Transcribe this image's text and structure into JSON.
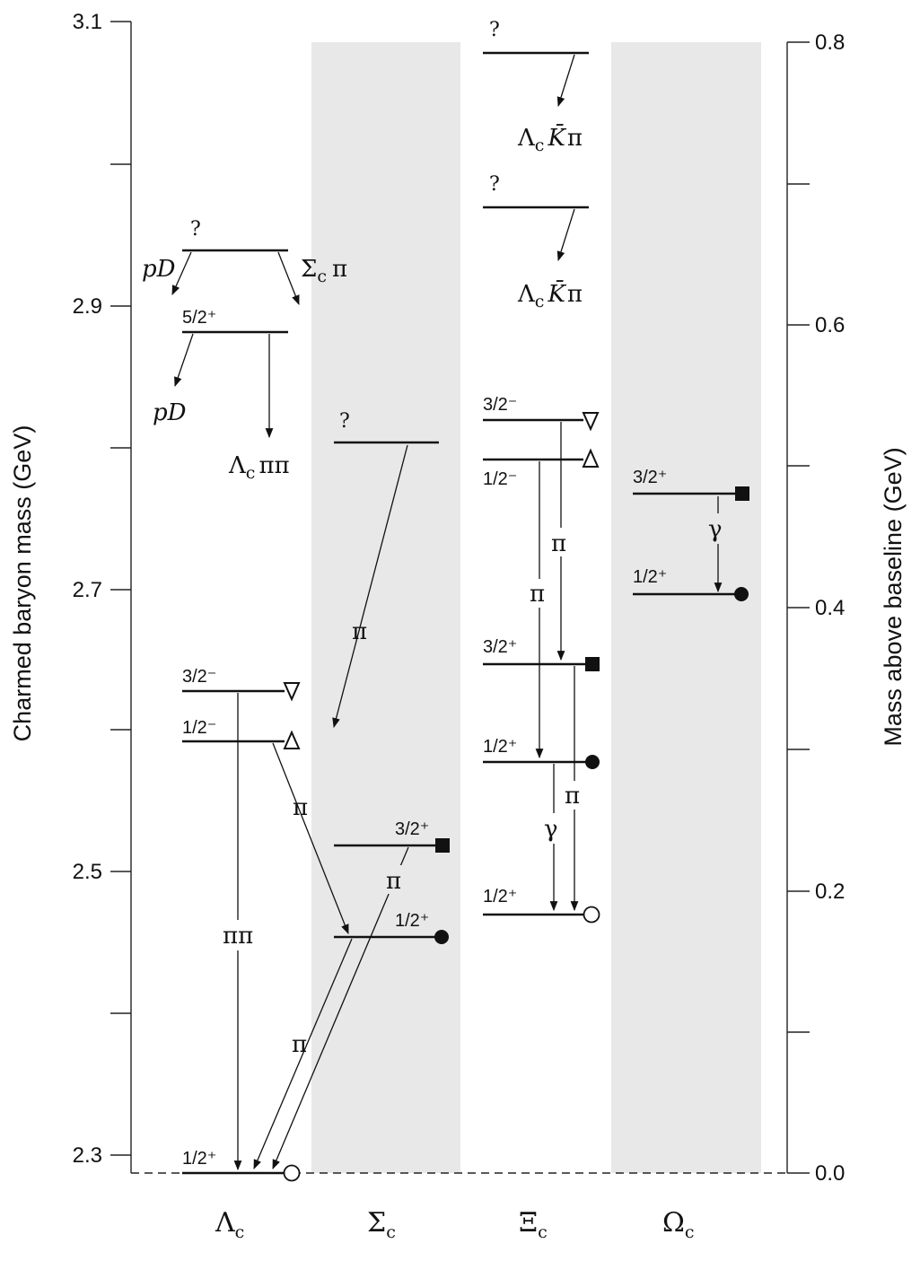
{
  "axes": {
    "left_label": "Charmed baryon mass  (GeV)",
    "right_label": "Mass above baseline  (GeV)",
    "left_ticks": [
      "2.3",
      "2.5",
      "2.7",
      "2.9",
      "3.1"
    ],
    "right_ticks": [
      "0.0",
      "0.2",
      "0.4",
      "0.6",
      "0.8"
    ]
  },
  "columns": [
    {
      "name": "Λ",
      "sub": "c"
    },
    {
      "name": "Σ",
      "sub": "c"
    },
    {
      "name": "Ξ",
      "sub": "c"
    },
    {
      "name": "Ω",
      "sub": "c"
    }
  ],
  "levels": {
    "lambda": [
      {
        "jp": "1/2⁺",
        "marker": "open-circle"
      },
      {
        "jp": "1/2⁻",
        "marker": "up-triangle"
      },
      {
        "jp": "3/2⁻",
        "marker": "down-triangle"
      },
      {
        "jp": "5/2⁺",
        "marker": "none"
      },
      {
        "jp": "?",
        "marker": "none"
      }
    ],
    "sigma": [
      {
        "jp": "1/2⁺",
        "marker": "filled-circle"
      },
      {
        "jp": "3/2⁺",
        "marker": "filled-square"
      },
      {
        "jp": "?",
        "marker": "none"
      }
    ],
    "xi": [
      {
        "jp": "1/2⁺",
        "marker": "open-circle"
      },
      {
        "jp": "1/2⁺",
        "marker": "filled-circle"
      },
      {
        "jp": "3/2⁺",
        "marker": "filled-square"
      },
      {
        "jp": "1/2⁻",
        "marker": "up-triangle"
      },
      {
        "jp": "3/2⁻",
        "marker": "down-triangle"
      },
      {
        "jp": "?",
        "marker": "none"
      },
      {
        "jp": "?",
        "marker": "none"
      }
    ],
    "omega": [
      {
        "jp": "1/2⁺",
        "marker": "filled-circle"
      },
      {
        "jp": "3/2⁺",
        "marker": "filled-square"
      }
    ]
  },
  "decays": {
    "pD": "pD",
    "sigma_pi": {
      "main": "Σ",
      "sub": "c",
      "tail": "π"
    },
    "lambda_pipi": {
      "main": "Λ",
      "sub": "c",
      "tail": "ππ"
    },
    "lambda_k_pi": {
      "main": "Λ",
      "sub": "c",
      "k": "K̄",
      "tail": "π"
    },
    "pi": "π",
    "pipi": "ππ",
    "gamma": "γ"
  },
  "colors": {
    "band": "#e8e8e8",
    "ink": "#111111"
  }
}
